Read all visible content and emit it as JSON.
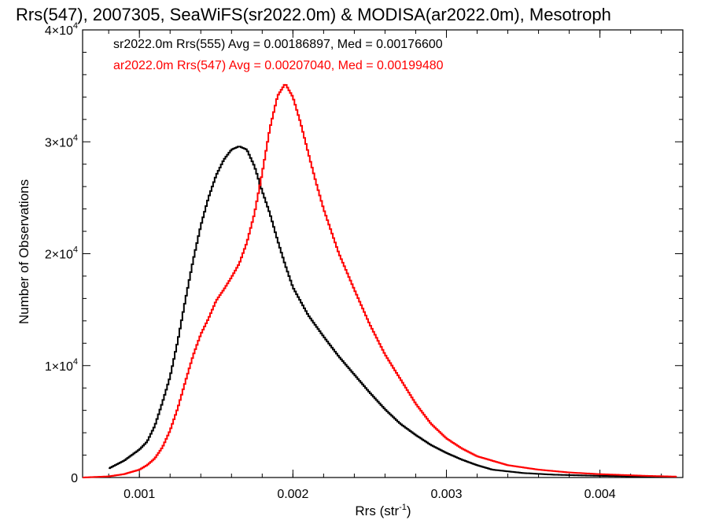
{
  "chart_data": {
    "type": "line",
    "title": "Rrs(547), 2007305, SeaWiFS(sr2022.0m) & MODISA(ar2022.0m), Mesotroph",
    "xlabel": "Rrs (str",
    "xlabel_sup": "-1",
    "xlabel_end": ")",
    "ylabel": "Number of Observations",
    "xlim": [
      0.00063,
      0.00454
    ],
    "ylim": [
      0,
      40000
    ],
    "xticks": [
      {
        "value": 0.001,
        "label": "0.001"
      },
      {
        "value": 0.002,
        "label": "0.002"
      },
      {
        "value": 0.003,
        "label": "0.003"
      },
      {
        "value": 0.004,
        "label": "0.004"
      }
    ],
    "yticks": [
      {
        "value": 0,
        "label": "0",
        "exp": ""
      },
      {
        "value": 10000,
        "label": "1×10",
        "exp": "4"
      },
      {
        "value": 20000,
        "label": "2×10",
        "exp": "4"
      },
      {
        "value": 30000,
        "label": "3×10",
        "exp": "4"
      },
      {
        "value": 40000,
        "label": "4×10",
        "exp": "4"
      }
    ],
    "legend": [
      {
        "text": "sr2022.0m Rrs(555) Avg = 0.00186897, Med = 0.00176600",
        "color": "#000000"
      },
      {
        "text": "ar2022.0m Rrs(547) Avg = 0.00207040, Med = 0.00199480",
        "color": "#ff0000"
      }
    ],
    "series": [
      {
        "color": "#000000",
        "x": [
          0.0008,
          0.0009,
          0.001,
          0.00105,
          0.0011,
          0.00115,
          0.0012,
          0.00125,
          0.0013,
          0.00135,
          0.0014,
          0.00145,
          0.0015,
          0.00155,
          0.0016,
          0.00165,
          0.0017,
          0.00175,
          0.0018,
          0.00185,
          0.0019,
          0.00195,
          0.002,
          0.0021,
          0.0022,
          0.0023,
          0.0024,
          0.0025,
          0.0026,
          0.0027,
          0.0028,
          0.0029,
          0.003,
          0.0031,
          0.0032,
          0.0033,
          0.0035,
          0.0037,
          0.004,
          0.0043,
          0.0045
        ],
        "y": [
          800,
          1500,
          2500,
          3200,
          4600,
          6700,
          9000,
          12200,
          15900,
          19400,
          22500,
          25000,
          27000,
          28400,
          29300,
          29600,
          29300,
          27800,
          25600,
          23600,
          21200,
          19000,
          17000,
          14500,
          12600,
          10800,
          9200,
          7600,
          6100,
          4800,
          3800,
          2900,
          2200,
          1600,
          1100,
          700,
          400,
          250,
          150,
          80,
          40
        ]
      },
      {
        "color": "#ff0000",
        "x": [
          0.00063,
          0.0008,
          0.0009,
          0.001,
          0.00105,
          0.0011,
          0.00115,
          0.0012,
          0.00125,
          0.0013,
          0.00135,
          0.0014,
          0.00145,
          0.0015,
          0.00155,
          0.0016,
          0.00165,
          0.0017,
          0.00175,
          0.0018,
          0.00185,
          0.0019,
          0.00195,
          0.002,
          0.00205,
          0.0021,
          0.00215,
          0.0022,
          0.00225,
          0.0023,
          0.0024,
          0.0025,
          0.0026,
          0.0027,
          0.0028,
          0.0029,
          0.003,
          0.0031,
          0.0032,
          0.0034,
          0.0036,
          0.0038,
          0.004,
          0.0043,
          0.0045
        ],
        "y": [
          0,
          100,
          300,
          700,
          1100,
          1700,
          2700,
          4200,
          6200,
          8600,
          10900,
          12800,
          14200,
          15800,
          16800,
          17900,
          19100,
          21000,
          23600,
          27200,
          31200,
          34100,
          35200,
          34000,
          31700,
          29000,
          26400,
          24000,
          22000,
          20000,
          16800,
          13700,
          11000,
          8800,
          6600,
          4800,
          3500,
          2600,
          1900,
          1100,
          700,
          450,
          300,
          150,
          80
        ]
      }
    ]
  }
}
